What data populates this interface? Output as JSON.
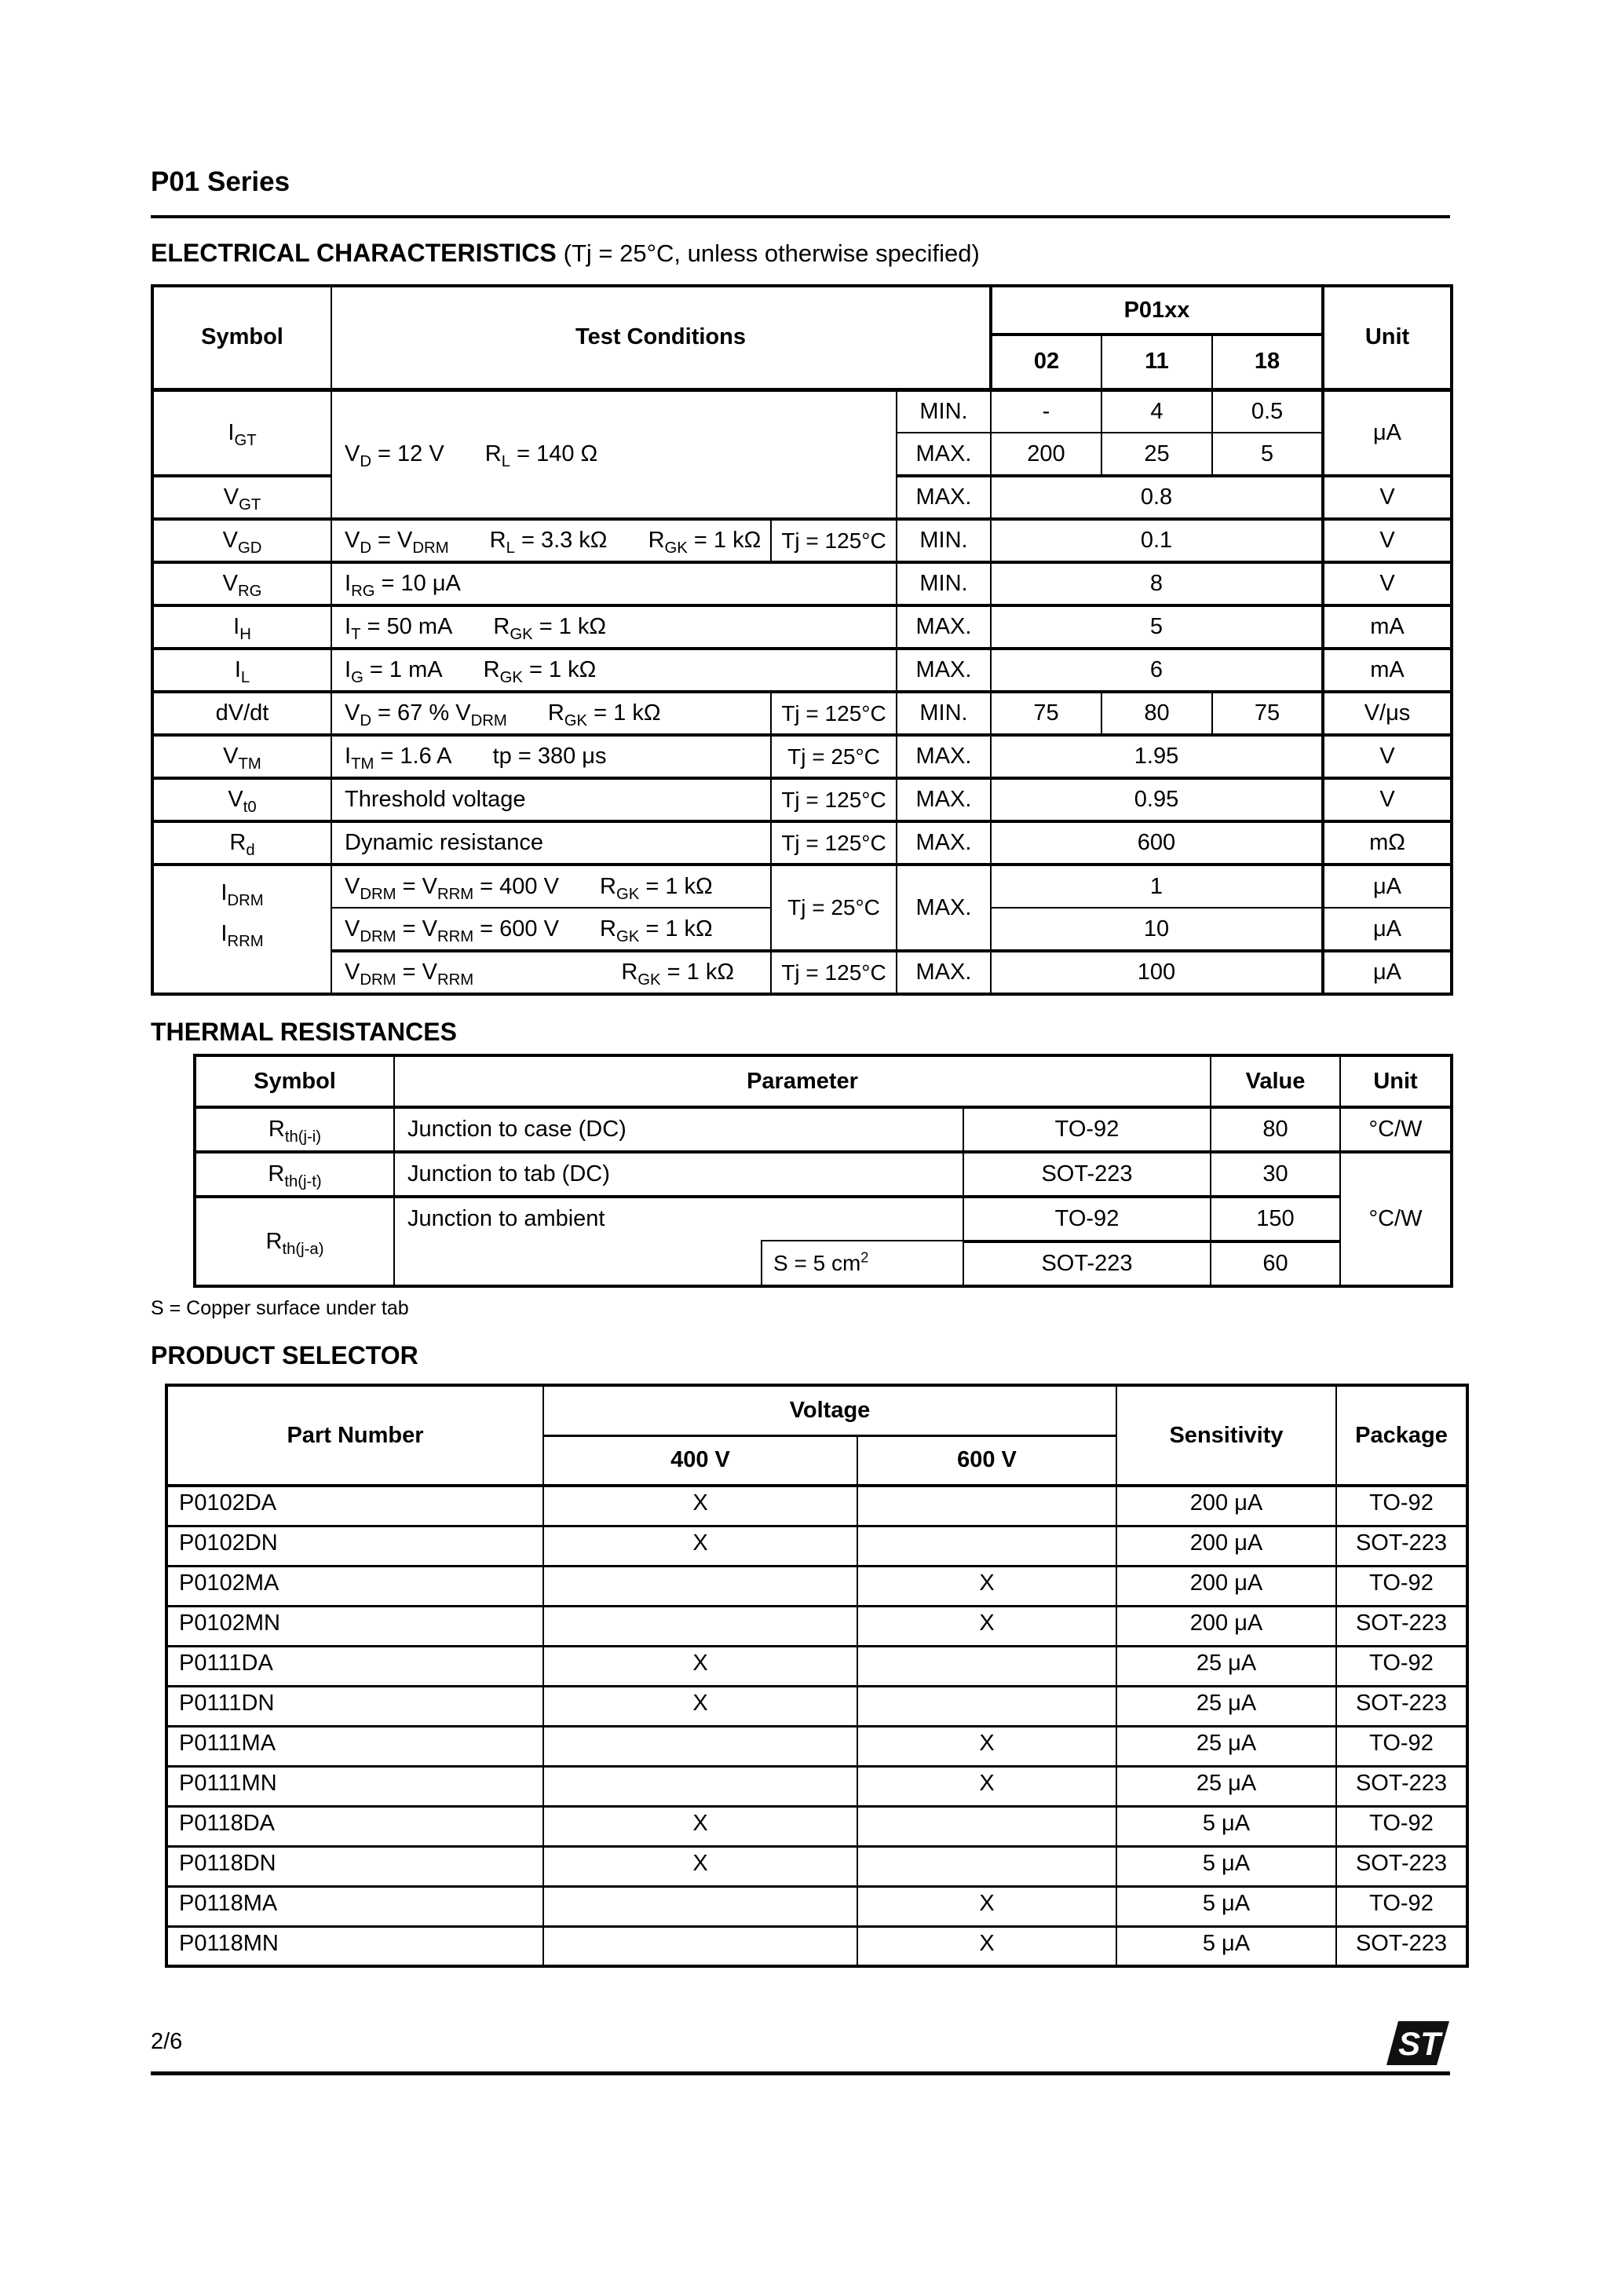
{
  "page": {
    "title": "P01 Series",
    "page_number": "2/6"
  },
  "electrical": {
    "heading": "ELECTRICAL CHARACTERISTICS",
    "note": "(Tj = 25°C, unless otherwise specified)",
    "headers": {
      "symbol": "Symbol",
      "test_conditions": "Test Conditions",
      "group": "P01xx",
      "col_02": "02",
      "col_11": "11",
      "col_18": "18",
      "unit": "Unit"
    },
    "igt": {
      "symbol": "I~GT~",
      "cond_a": "V~D~ = 12 V",
      "cond_b": "R~L~ = 140 Ω",
      "min_label": "MIN.",
      "min_02": "-",
      "min_11": "4",
      "min_18": "0.5",
      "max_label": "MAX.",
      "max_02": "200",
      "max_11": "25",
      "max_18": "5",
      "unit": "μA"
    },
    "vgt": {
      "symbol": "V~GT~",
      "label": "MAX.",
      "value": "0.8",
      "unit": "V"
    },
    "vgd": {
      "symbol": "V~GD~",
      "cond_a": "V~D~ = V~DRM~",
      "cond_b": "R~L~ = 3.3 kΩ",
      "cond_c": "R~GK~ = 1 kΩ",
      "tj": "Tj = 125°C",
      "label": "MIN.",
      "value": "0.1",
      "unit": "V"
    },
    "vrg": {
      "symbol": "V~RG~",
      "cond_a": "I~RG~ = 10 μA",
      "label": "MIN.",
      "value": "8",
      "unit": "V"
    },
    "ih": {
      "symbol": "I~H~",
      "cond_a": "I~T~ = 50 mA",
      "cond_b": "R~GK~ = 1 kΩ",
      "label": "MAX.",
      "value": "5",
      "unit": "mA"
    },
    "il": {
      "symbol": "I~L~",
      "cond_a": "I~G~ = 1 mA",
      "cond_b": "R~GK~ = 1 kΩ",
      "label": "MAX.",
      "value": "6",
      "unit": "mA"
    },
    "dvdt": {
      "symbol": "dV/dt",
      "cond_a": "V~D~ =  67 % V~DRM~",
      "cond_b": "R~GK~ = 1 kΩ",
      "tj": "Tj = 125°C",
      "label": "MIN.",
      "c02": "75",
      "c11": "80",
      "c18": "75",
      "unit": "V/μs"
    },
    "vtm": {
      "symbol": "V~TM~",
      "cond_a": "I~TM~ = 1.6 A",
      "cond_b": "tp = 380 μs",
      "tj": "Tj = 25°C",
      "label": "MAX.",
      "value": "1.95",
      "unit": "V"
    },
    "vt0": {
      "symbol": "V~t0~",
      "cond_a": "Threshold voltage",
      "tj": "Tj = 125°C",
      "label": "MAX.",
      "value": "0.95",
      "unit": "V"
    },
    "rd": {
      "symbol": "R~d~",
      "cond_a": "Dynamic resistance",
      "tj": "Tj = 125°C",
      "label": "MAX.",
      "value": "600",
      "unit": "mΩ"
    },
    "idrm_irrm": {
      "symbol_1": "I~DRM~",
      "symbol_2": "I~RRM~",
      "row1": {
        "cond_a": "V~DRM~ = V~RRM~ = 400 V",
        "cond_b": "R~GK~ = 1 kΩ",
        "tj": "Tj = 25°C",
        "label": "MAX.",
        "value": "1",
        "unit": "μA"
      },
      "row2": {
        "cond_a": "V~DRM~ = V~RRM~ = 600 V",
        "cond_b": "R~GK~ = 1 kΩ",
        "value": "10",
        "unit": "μA"
      },
      "row3": {
        "cond_a": "V~DRM~ = V~RRM~",
        "cond_b": "R~GK~ = 1 kΩ",
        "tj": "Tj = 125°C",
        "label": "MAX.",
        "value": "100",
        "unit": "μA"
      }
    }
  },
  "thermal": {
    "heading": "THERMAL RESISTANCES",
    "headers": {
      "symbol": "Symbol",
      "parameter": "Parameter",
      "value": "Value",
      "unit": "Unit"
    },
    "r1": {
      "symbol": "R~th(j-i)~",
      "parameter": "Junction to case (DC)",
      "package": "TO-92",
      "value": "80",
      "unit": "°C/W"
    },
    "r2": {
      "symbol": "R~th(j-t)~",
      "parameter": "Junction to tab (DC)",
      "package": "SOT-223",
      "value": "30",
      "unit": "°C/W"
    },
    "r3": {
      "symbol": "R~th(j-a)~",
      "parameter": "Junction to ambient",
      "package": "TO-92",
      "value": "150"
    },
    "r4": {
      "surface": "S = 5 cm^2^",
      "package": "SOT-223",
      "value": "60"
    },
    "footnote": "S = Copper surface under tab"
  },
  "product": {
    "heading": "PRODUCT SELECTOR",
    "headers": {
      "part": "Part Number",
      "voltage": "Voltage",
      "v400": "400 V",
      "v600": "600 V",
      "sensitivity": "Sensitivity",
      "package": "Package"
    },
    "rows": [
      {
        "part": "P0102DA",
        "v400": "X",
        "v600": "",
        "sensitivity": "200 μA",
        "package": "TO-92"
      },
      {
        "part": "P0102DN",
        "v400": "X",
        "v600": "",
        "sensitivity": "200 μA",
        "package": "SOT-223"
      },
      {
        "part": "P0102MA",
        "v400": "",
        "v600": "X",
        "sensitivity": "200 μA",
        "package": "TO-92"
      },
      {
        "part": "P0102MN",
        "v400": "",
        "v600": "X",
        "sensitivity": "200 μA",
        "package": "SOT-223"
      },
      {
        "part": "P0111DA",
        "v400": "X",
        "v600": "",
        "sensitivity": "25 μA",
        "package": "TO-92"
      },
      {
        "part": "P0111DN",
        "v400": "X",
        "v600": "",
        "sensitivity": "25 μA",
        "package": "SOT-223"
      },
      {
        "part": "P0111MA",
        "v400": "",
        "v600": "X",
        "sensitivity": "25 μA",
        "package": "TO-92"
      },
      {
        "part": "P0111MN",
        "v400": "",
        "v600": "X",
        "sensitivity": "25 μA",
        "package": "SOT-223"
      },
      {
        "part": "P0118DA",
        "v400": "X",
        "v600": "",
        "sensitivity": "5 μA",
        "package": "TO-92"
      },
      {
        "part": "P0118DN",
        "v400": "X",
        "v600": "",
        "sensitivity": "5 μA",
        "package": "SOT-223"
      },
      {
        "part": "P0118MA",
        "v400": "",
        "v600": "X",
        "sensitivity": "5 μA",
        "package": "TO-92"
      },
      {
        "part": "P0118MN",
        "v400": "",
        "v600": "X",
        "sensitivity": "5 μA",
        "package": "SOT-223"
      }
    ]
  }
}
